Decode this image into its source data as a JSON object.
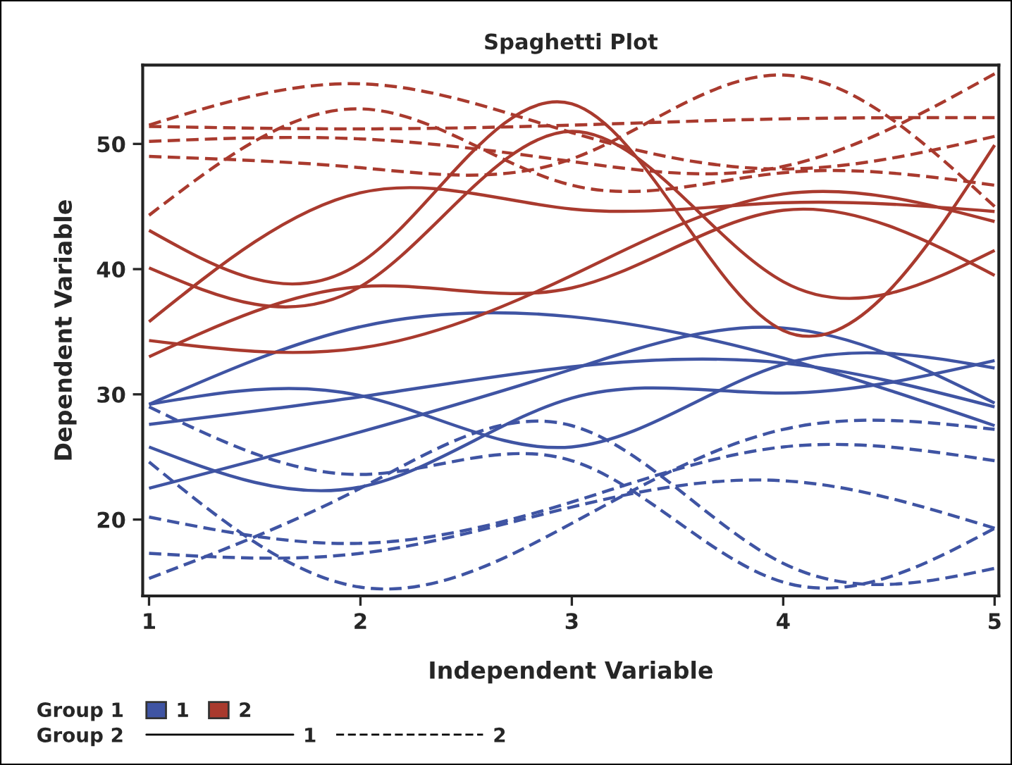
{
  "chart_data": {
    "type": "line",
    "title": "Spaghetti Plot",
    "xlabel": "Independent Variable",
    "ylabel": "Dependent Variable",
    "x": [
      1,
      2,
      3,
      4,
      5
    ],
    "xlim": [
      0.97,
      5.02
    ],
    "ylim": [
      13.9,
      56.3
    ],
    "xticks": [
      1,
      2,
      3,
      4,
      5
    ],
    "yticks": [
      20,
      30,
      40,
      50
    ],
    "grid": false,
    "legend": "bottom left",
    "marker": "none",
    "annotations": [
      "Group 1",
      "Group 2"
    ],
    "series": [
      {
        "color": "#3f54a3",
        "line_style": "solid",
        "values": [
          29.2,
          35.4,
          36.2,
          32.9,
          27.5
        ]
      },
      {
        "color": "#3f54a3",
        "line_style": "solid",
        "values": [
          22.5,
          27.0,
          32.0,
          35.3,
          29.3
        ]
      },
      {
        "color": "#3f54a3",
        "line_style": "solid",
        "values": [
          27.6,
          29.8,
          32.2,
          32.5,
          29.0
        ]
      },
      {
        "color": "#3f54a3",
        "line_style": "solid",
        "values": [
          29.2,
          29.9,
          25.8,
          32.4,
          32.1
        ]
      },
      {
        "color": "#3f54a3",
        "line_style": "solid",
        "values": [
          25.8,
          22.6,
          29.7,
          30.1,
          32.7
        ]
      },
      {
        "color": "#3f54a3",
        "line_style": "dashed",
        "values": [
          29.0,
          23.6,
          24.7,
          15.0,
          19.3
        ]
      },
      {
        "color": "#3f54a3",
        "line_style": "dashed",
        "values": [
          24.6,
          14.6,
          19.7,
          27.2,
          27.2
        ]
      },
      {
        "color": "#3f54a3",
        "line_style": "dashed",
        "values": [
          15.3,
          22.5,
          27.5,
          16.5,
          16.1
        ]
      },
      {
        "color": "#3f54a3",
        "line_style": "dashed",
        "values": [
          20.2,
          18.1,
          21.4,
          25.8,
          24.7
        ]
      },
      {
        "color": "#3f54a3",
        "line_style": "dashed",
        "values": [
          17.3,
          17.3,
          21.0,
          23.1,
          19.3
        ]
      },
      {
        "color": "#a93a2e",
        "line_style": "solid",
        "values": [
          43.1,
          40.5,
          53.2,
          35.1,
          49.9
        ]
      },
      {
        "color": "#a93a2e",
        "line_style": "solid",
        "values": [
          35.8,
          46.1,
          44.8,
          45.3,
          44.6
        ]
      },
      {
        "color": "#a93a2e",
        "line_style": "solid",
        "values": [
          40.1,
          38.6,
          51.0,
          39.0,
          41.5
        ]
      },
      {
        "color": "#a93a2e",
        "line_style": "solid",
        "values": [
          34.3,
          33.7,
          39.5,
          46.0,
          43.8
        ]
      },
      {
        "color": "#a93a2e",
        "line_style": "solid",
        "values": [
          33.0,
          38.6,
          38.5,
          44.7,
          39.5
        ]
      },
      {
        "color": "#a93a2e",
        "line_style": "dashed",
        "values": [
          51.4,
          51.2,
          51.5,
          52.0,
          52.1
        ]
      },
      {
        "color": "#a93a2e",
        "line_style": "dashed",
        "values": [
          51.5,
          54.8,
          50.9,
          48.0,
          50.6
        ]
      },
      {
        "color": "#a93a2e",
        "line_style": "dashed",
        "values": [
          49.0,
          48.1,
          48.8,
          55.5,
          45.0
        ]
      },
      {
        "color": "#a93a2e",
        "line_style": "dashed",
        "values": [
          50.2,
          50.4,
          48.6,
          48.2,
          55.6
        ]
      },
      {
        "color": "#a93a2e",
        "line_style": "dashed",
        "values": [
          44.3,
          52.8,
          46.7,
          47.7,
          46.7
        ]
      },
      {
        "name": "1",
        "color": "#3f54a3",
        "values": [
          null,
          null,
          null,
          null,
          null
        ]
      },
      {
        "name": "2",
        "color": "#a93a2e",
        "values": [
          null,
          null,
          null,
          null,
          null
        ]
      },
      {
        "name": "1",
        "color": "#000000",
        "line_style": "solid",
        "values": [
          null,
          null,
          null,
          null,
          null
        ]
      },
      {
        "name": "2",
        "color": "#000000",
        "line_style": "dashed",
        "values": [
          null,
          null,
          null,
          null,
          null
        ]
      }
    ]
  }
}
